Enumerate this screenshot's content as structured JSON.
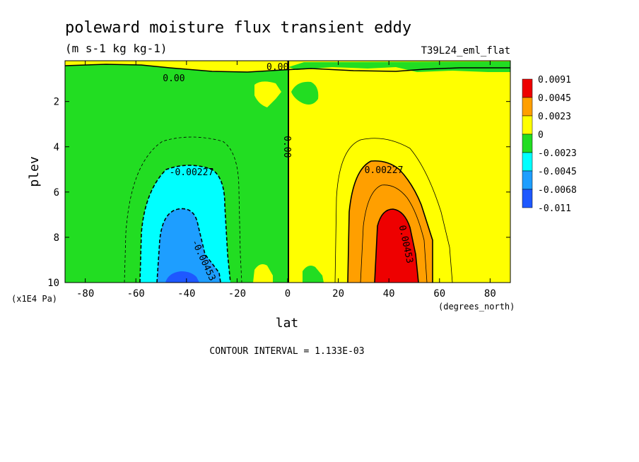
{
  "chart_data": {
    "type": "heatmap",
    "title": "poleward moisture flux transient eddy",
    "units": "(m s-1 kg kg-1)",
    "dataset": "T39L24_eml_flat",
    "xlabel": "lat",
    "xunits": "(degrees_north)",
    "ylabel": "plev",
    "yunits": "(x1E4 Pa)",
    "xlim": [
      -88,
      88
    ],
    "ylim": [
      10,
      0.2
    ],
    "x_ticks": [
      "-80",
      "-60",
      "-40",
      "-20",
      "0",
      "20",
      "40",
      "60",
      "80"
    ],
    "x_tick_values": [
      -80,
      -60,
      -40,
      -20,
      0,
      20,
      40,
      60,
      80
    ],
    "y_ticks": [
      "2",
      "4",
      "6",
      "8",
      "10"
    ],
    "y_tick_values": [
      2,
      4,
      6,
      8,
      10
    ],
    "contour_interval_text": "CONTOUR INTERVAL = 1.133E-03",
    "contour_labels": [
      {
        "text": "0.00",
        "x": -45,
        "y": 0.95
      },
      {
        "text": "0.00",
        "x": -4,
        "y": 0.45
      },
      {
        "text": "0.00",
        "x": 0,
        "y": 4.0
      },
      {
        "text": "-0.00227",
        "x": -38,
        "y": 5.1
      },
      {
        "text": "-0.00453",
        "x": -33,
        "y": 9.0
      },
      {
        "text": "0.00227",
        "x": 38,
        "y": 5.0
      },
      {
        "text": "0.00453",
        "x": 47,
        "y": 8.3
      }
    ],
    "legend": {
      "labels": [
        "0.0091",
        "0.0045",
        "0.0023",
        "0",
        "-0.0023",
        "-0.0045",
        "-0.0068",
        "-0.011"
      ],
      "colors": [
        "#ee0000",
        "#ff9f00",
        "#ffff00",
        "#22dd22",
        "#00ffff",
        "#1e9eff",
        "#1e58ff"
      ]
    },
    "extrema": {
      "max_approx": 0.0091,
      "min_approx": -0.011
    }
  }
}
